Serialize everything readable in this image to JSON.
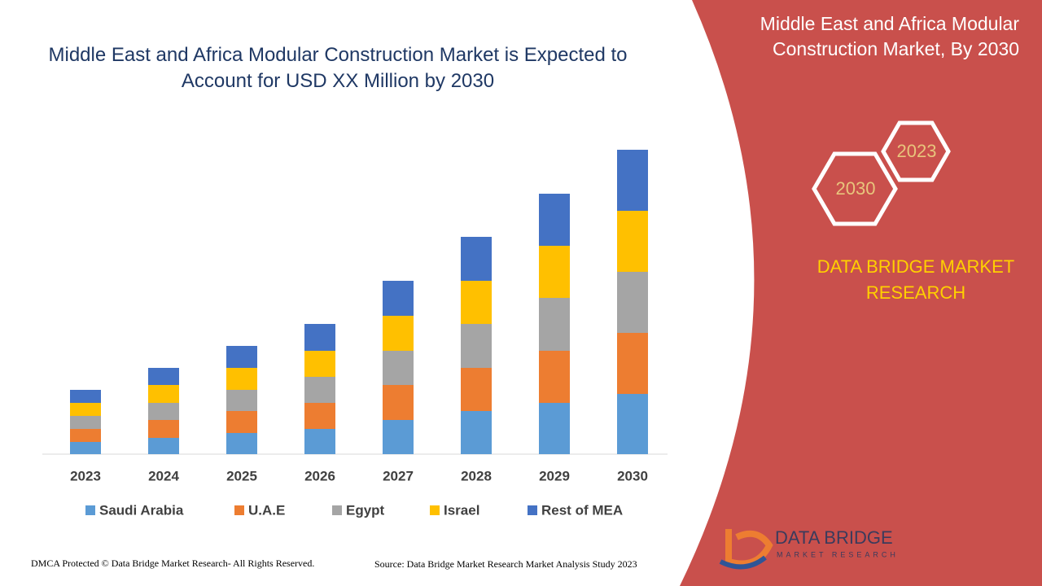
{
  "chart_data": {
    "type": "stacked_bar",
    "title": "Middle East and Africa Modular Construction Market is Expected to Account for USD XX Million by 2030",
    "categories": [
      "2023",
      "2024",
      "2025",
      "2026",
      "2027",
      "2028",
      "2029",
      "2030"
    ],
    "series": [
      {
        "name": "Saudi Arabia",
        "color": "#5b9bd5",
        "values": [
          15,
          20,
          26,
          31,
          42,
          53,
          63,
          74
        ]
      },
      {
        "name": "U.A.E",
        "color": "#ed7d31",
        "values": [
          16,
          22,
          27,
          32,
          43,
          53,
          64,
          75
        ]
      },
      {
        "name": "Egypt",
        "color": "#a5a5a5",
        "values": [
          16,
          21,
          26,
          32,
          42,
          54,
          65,
          75
        ]
      },
      {
        "name": "Israel",
        "color": "#ffc000",
        "values": [
          16,
          22,
          27,
          32,
          43,
          53,
          64,
          75
        ]
      },
      {
        "name": "Rest of MEA",
        "color": "#4472c4",
        "values": [
          16,
          21,
          27,
          33,
          43,
          54,
          64,
          75
        ]
      }
    ],
    "ylim": [
      0,
      400
    ],
    "grid": false,
    "legend": "bottom"
  },
  "side_panel": {
    "title": "Middle East and Africa Modular Construction Market, By 2030",
    "hex_labels": [
      "2023",
      "2030"
    ],
    "brand": "DATA BRIDGE MARKET RESEARCH",
    "logo_name": "DATA BRIDGE",
    "logo_sub": "MARKET RESEARCH"
  },
  "footer": {
    "copyright": "DMCA Protected © Data Bridge Market Research- All Rights Reserved.",
    "source": "Source: Data Bridge Market Research Market Analysis Study 2023"
  }
}
